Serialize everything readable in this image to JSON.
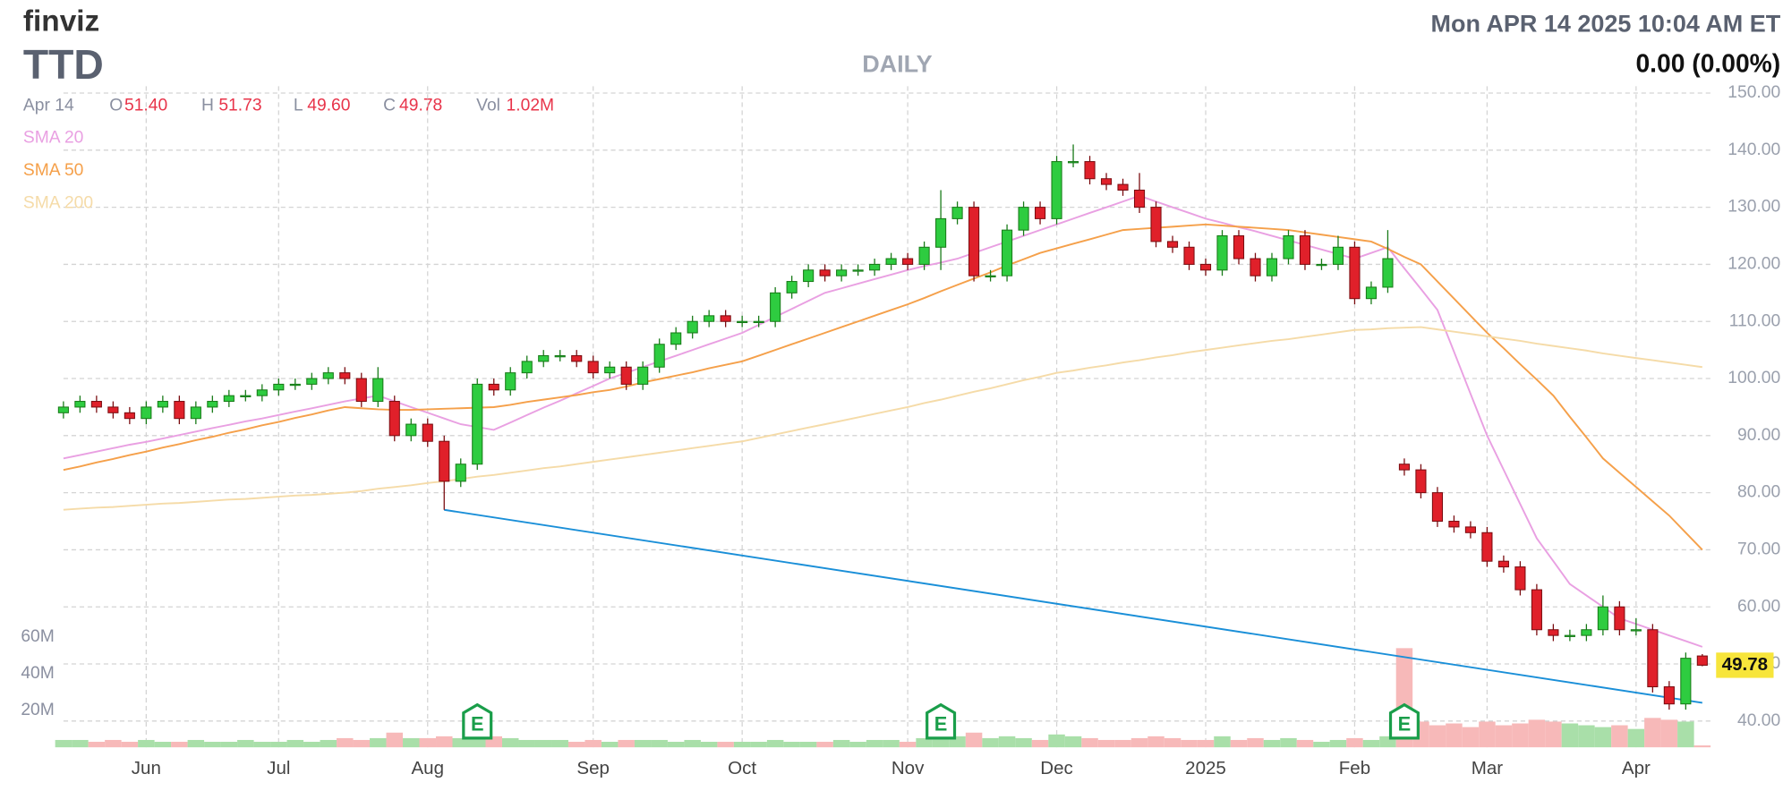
{
  "chart_data": {
    "type": "candlestick",
    "brand": "finviz",
    "title": "TTD",
    "subtitle": "DAILY",
    "timestamp": "Mon APR 14 2025 10:04 AM ET",
    "change": "0.00 (0.00%)",
    "ohlc_header": {
      "date": "Apr 14",
      "fields": [
        {
          "name": "O",
          "text": "51.40"
        },
        {
          "name": "H",
          "text": "51.73"
        },
        {
          "name": "L",
          "text": "49.60"
        },
        {
          "name": "C",
          "text": "49.78"
        },
        {
          "name": "Vol",
          "text": "1.02M"
        }
      ]
    },
    "categories": [
      null,
      null,
      null,
      null,
      null,
      "Jun",
      null,
      null,
      null,
      null,
      null,
      null,
      null,
      "Jul",
      null,
      null,
      null,
      null,
      null,
      null,
      null,
      null,
      "Aug",
      null,
      null,
      null,
      null,
      null,
      null,
      null,
      null,
      null,
      "Sep",
      null,
      null,
      null,
      null,
      null,
      null,
      null,
      null,
      "Oct",
      null,
      null,
      null,
      null,
      null,
      null,
      null,
      null,
      null,
      "Nov",
      null,
      null,
      null,
      null,
      null,
      null,
      null,
      null,
      "Dec",
      null,
      null,
      null,
      null,
      null,
      null,
      null,
      null,
      "2025",
      null,
      null,
      null,
      null,
      null,
      null,
      null,
      null,
      "Feb",
      null,
      null,
      null,
      null,
      null,
      null,
      null,
      "Mar",
      null,
      null,
      null,
      null,
      null,
      null,
      null,
      null,
      "Apr",
      null,
      null,
      null,
      null
    ],
    "candles": {
      "up_color": "#2ecc40",
      "down_color": "#e0202a",
      "open": [
        94,
        95,
        96,
        95,
        94,
        93,
        95,
        96,
        93,
        95,
        96,
        97,
        97,
        98,
        99,
        99,
        100,
        101,
        100,
        96,
        96,
        90,
        92,
        89,
        82,
        85,
        99,
        98,
        101,
        103,
        104,
        104,
        103,
        101,
        102,
        99,
        102,
        106,
        108,
        110,
        111,
        110,
        110,
        110,
        115,
        117,
        119,
        118,
        119,
        119,
        120,
        121,
        120,
        123,
        128,
        130,
        118,
        118,
        126,
        130,
        128,
        138,
        138,
        135,
        134,
        133,
        130,
        124,
        123,
        120,
        119,
        125,
        121,
        118,
        121,
        125,
        120,
        120,
        123,
        114,
        116,
        85,
        84,
        80,
        75,
        74,
        73,
        68,
        67,
        63,
        56,
        55,
        55,
        56,
        60,
        56,
        56,
        46,
        43,
        51.4
      ],
      "high": [
        96,
        97,
        97,
        96,
        95,
        96,
        97,
        97,
        96,
        97,
        98,
        98,
        99,
        100,
        100,
        101,
        102,
        102,
        101,
        102,
        97,
        93,
        93,
        90,
        86,
        100,
        100,
        102,
        104,
        105,
        105,
        105,
        104,
        103,
        103,
        103,
        107,
        109,
        111,
        112,
        112,
        111,
        111,
        116,
        118,
        120,
        120,
        120,
        120,
        121,
        122,
        122,
        124,
        133,
        131,
        131,
        119,
        127,
        131,
        131,
        139,
        141,
        139,
        136,
        135,
        136,
        131,
        125,
        124,
        121,
        126,
        126,
        122,
        122,
        126,
        126,
        121,
        125,
        124,
        117,
        126,
        86,
        85,
        81,
        76,
        75,
        74,
        69,
        68,
        64,
        57,
        56,
        57,
        62,
        61,
        58,
        57,
        47,
        52,
        51.73
      ],
      "low": [
        93,
        94,
        94,
        93,
        92,
        92,
        94,
        92,
        92,
        94,
        95,
        96,
        96,
        97,
        98,
        98,
        99,
        99,
        95,
        95,
        89,
        89,
        88,
        77,
        81,
        84,
        97,
        97,
        100,
        102,
        103,
        102,
        100,
        100,
        98,
        98,
        101,
        105,
        107,
        109,
        109,
        109,
        109,
        109,
        114,
        116,
        117,
        117,
        118,
        118,
        119,
        119,
        119,
        119,
        127,
        117,
        117,
        117,
        125,
        127,
        127,
        137,
        134,
        133,
        132,
        129,
        123,
        122,
        119,
        118,
        118,
        120,
        117,
        117,
        120,
        119,
        119,
        119,
        113,
        113,
        115,
        83,
        79,
        74,
        73,
        72,
        67,
        66,
        62,
        55,
        54,
        54,
        54,
        55,
        55,
        55,
        45,
        42,
        42,
        49.6
      ],
      "close": [
        95,
        96,
        95,
        94,
        93,
        95,
        96,
        93,
        95,
        96,
        97,
        97,
        98,
        99,
        99,
        100,
        101,
        100,
        96,
        100,
        90,
        92,
        89,
        82,
        85,
        99,
        98,
        101,
        103,
        104,
        104,
        103,
        101,
        102,
        99,
        102,
        106,
        108,
        110,
        111,
        110,
        110,
        110,
        115,
        117,
        119,
        118,
        119,
        119,
        120,
        121,
        120,
        123,
        128,
        130,
        118,
        118,
        126,
        130,
        128,
        138,
        138,
        135,
        134,
        133,
        130,
        124,
        123,
        120,
        119,
        125,
        121,
        118,
        121,
        125,
        120,
        120,
        123,
        114,
        116,
        121,
        84,
        80,
        75,
        74,
        73,
        68,
        67,
        63,
        56,
        55,
        55,
        56,
        60,
        56,
        56,
        46,
        43,
        51,
        49.78
      ]
    },
    "ylim": [
      35.4,
      151.2
    ],
    "yticks": [
      {
        "value": 40,
        "label": "40.00"
      },
      {
        "value": 50,
        "label": "50.00"
      },
      {
        "value": 60,
        "label": "60.00"
      },
      {
        "value": 70,
        "label": "70.00"
      },
      {
        "value": 80,
        "label": "80.00"
      },
      {
        "value": 90,
        "label": "90.00"
      },
      {
        "value": 100,
        "label": "100.00"
      },
      {
        "value": 110,
        "label": "110.00"
      },
      {
        "value": 120,
        "label": "120.00"
      },
      {
        "value": 130,
        "label": "130.00"
      },
      {
        "value": 140,
        "label": "140.00"
      },
      {
        "value": 150,
        "label": "150.00"
      }
    ],
    "grid": true,
    "volume": {
      "up_color": "#a9dfa9",
      "down_color": "#f7b9b9",
      "values": [
        4,
        4,
        3,
        4,
        3,
        4,
        3,
        3,
        4,
        3,
        3,
        4,
        3,
        3,
        4,
        3,
        4,
        5,
        4,
        5,
        8,
        5,
        5,
        6,
        5,
        12,
        6,
        5,
        4,
        4,
        4,
        3,
        4,
        3,
        4,
        4,
        4,
        3,
        4,
        3,
        3,
        3,
        3,
        4,
        3,
        3,
        3,
        4,
        3,
        4,
        4,
        3,
        5,
        10,
        6,
        8,
        5,
        6,
        5,
        4,
        7,
        6,
        5,
        4,
        4,
        5,
        6,
        5,
        4,
        4,
        6,
        4,
        5,
        4,
        5,
        4,
        3,
        4,
        5,
        4,
        6,
        54,
        14,
        12,
        13,
        11,
        14,
        12,
        13,
        15,
        14,
        13,
        12,
        11,
        12,
        10,
        16,
        15,
        14,
        1.02
      ],
      "ylim": [
        0,
        360
      ],
      "yticks": [
        {
          "value": 20,
          "label": "20M"
        },
        {
          "value": 40,
          "label": "40M"
        },
        {
          "value": 60,
          "label": "60M"
        }
      ]
    },
    "sma": [
      {
        "name": "SMA 20",
        "color": "#e9a0e2",
        "values": [
          86,
          86.6,
          87.2,
          87.8,
          88.4,
          88.9,
          89.5,
          90.1,
          90.7,
          91.3,
          91.9,
          92.5,
          93,
          93.6,
          94.2,
          94.8,
          95.4,
          96,
          96.5,
          97,
          96,
          95,
          94,
          93,
          92,
          91.5,
          91,
          92.3,
          93.6,
          94.9,
          96.1,
          97.4,
          98.7,
          100,
          101,
          102,
          103,
          104,
          105,
          106,
          107,
          108,
          109.4,
          110.8,
          112.2,
          113.6,
          115,
          115.8,
          116.6,
          117.4,
          118.2,
          119,
          119.7,
          120.3,
          121,
          122,
          123,
          124,
          125,
          126,
          127,
          128,
          129,
          130,
          131,
          132,
          131,
          130,
          129,
          128,
          127.3,
          126.5,
          125.8,
          125,
          124.2,
          123.4,
          122.6,
          121.8,
          121,
          122,
          123,
          119.3,
          115.7,
          112,
          104.7,
          97.3,
          90,
          84,
          78,
          72,
          68,
          64,
          62,
          60,
          58,
          57,
          56,
          55,
          54,
          53
        ]
      },
      {
        "name": "SMA 50",
        "color": "#f5a04a",
        "values": [
          84,
          84.6,
          85.3,
          85.9,
          86.6,
          87.2,
          87.9,
          88.5,
          89.2,
          89.8,
          90.5,
          91.1,
          91.8,
          92.4,
          93.1,
          93.7,
          94.4,
          95,
          94.8,
          94.6,
          94.5,
          94.5,
          94.6,
          94.7,
          94.8,
          94.9,
          95,
          95.4,
          95.9,
          96.3,
          96.7,
          97.1,
          97.6,
          98,
          98.6,
          99.3,
          99.9,
          100.5,
          101.1,
          101.8,
          102.4,
          103,
          104,
          105,
          106,
          107,
          108,
          109,
          110,
          111,
          112,
          113,
          114.1,
          115.3,
          116.4,
          117.5,
          118.6,
          119.8,
          120.9,
          122,
          122.8,
          123.6,
          124.4,
          125.2,
          126,
          126.2,
          126.4,
          126.6,
          126.8,
          127,
          126.8,
          126.6,
          126.4,
          126.2,
          126,
          125.6,
          125.2,
          124.8,
          124.4,
          124,
          122.7,
          121.3,
          120,
          117,
          114,
          111,
          108,
          105.3,
          102.5,
          99.8,
          97,
          93.3,
          89.7,
          86,
          83.5,
          81,
          78.5,
          76,
          73,
          70
        ]
      },
      {
        "name": "SMA 200",
        "color": "#f5dba8",
        "values": [
          77,
          77.2,
          77.4,
          77.5,
          77.7,
          77.9,
          78.1,
          78.2,
          78.4,
          78.6,
          78.8,
          78.9,
          79.1,
          79.3,
          79.5,
          79.6,
          79.8,
          80,
          80.3,
          80.7,
          81,
          81.3,
          81.7,
          82,
          82.4,
          82.8,
          83.1,
          83.5,
          83.9,
          84.3,
          84.6,
          85,
          85.4,
          85.8,
          86.2,
          86.6,
          87,
          87.4,
          87.8,
          88.2,
          88.6,
          89,
          89.6,
          90.2,
          90.8,
          91.4,
          92,
          92.6,
          93.2,
          93.8,
          94.4,
          95,
          95.7,
          96.3,
          97,
          97.7,
          98.3,
          99,
          99.7,
          100.3,
          101,
          101.4,
          101.9,
          102.3,
          102.8,
          103.2,
          103.7,
          104.1,
          104.6,
          105,
          105.4,
          105.8,
          106.2,
          106.6,
          106.9,
          107.3,
          107.7,
          108.1,
          108.5,
          108.6,
          108.8,
          108.9,
          109,
          108.6,
          108.2,
          107.8,
          107.4,
          107,
          106.6,
          106.1,
          105.7,
          105.3,
          104.9,
          104.4,
          104,
          103.6,
          103.2,
          102.8,
          102.4,
          102
        ]
      }
    ],
    "earnings_markers": [
      {
        "label": "E",
        "at": 25
      },
      {
        "label": "E",
        "at": 53
      },
      {
        "label": "E",
        "at": 81
      }
    ],
    "trendline": {
      "color": "#1a8fd8",
      "start": [
        23,
        77
      ],
      "end": [
        99,
        43.2
      ]
    }
  }
}
